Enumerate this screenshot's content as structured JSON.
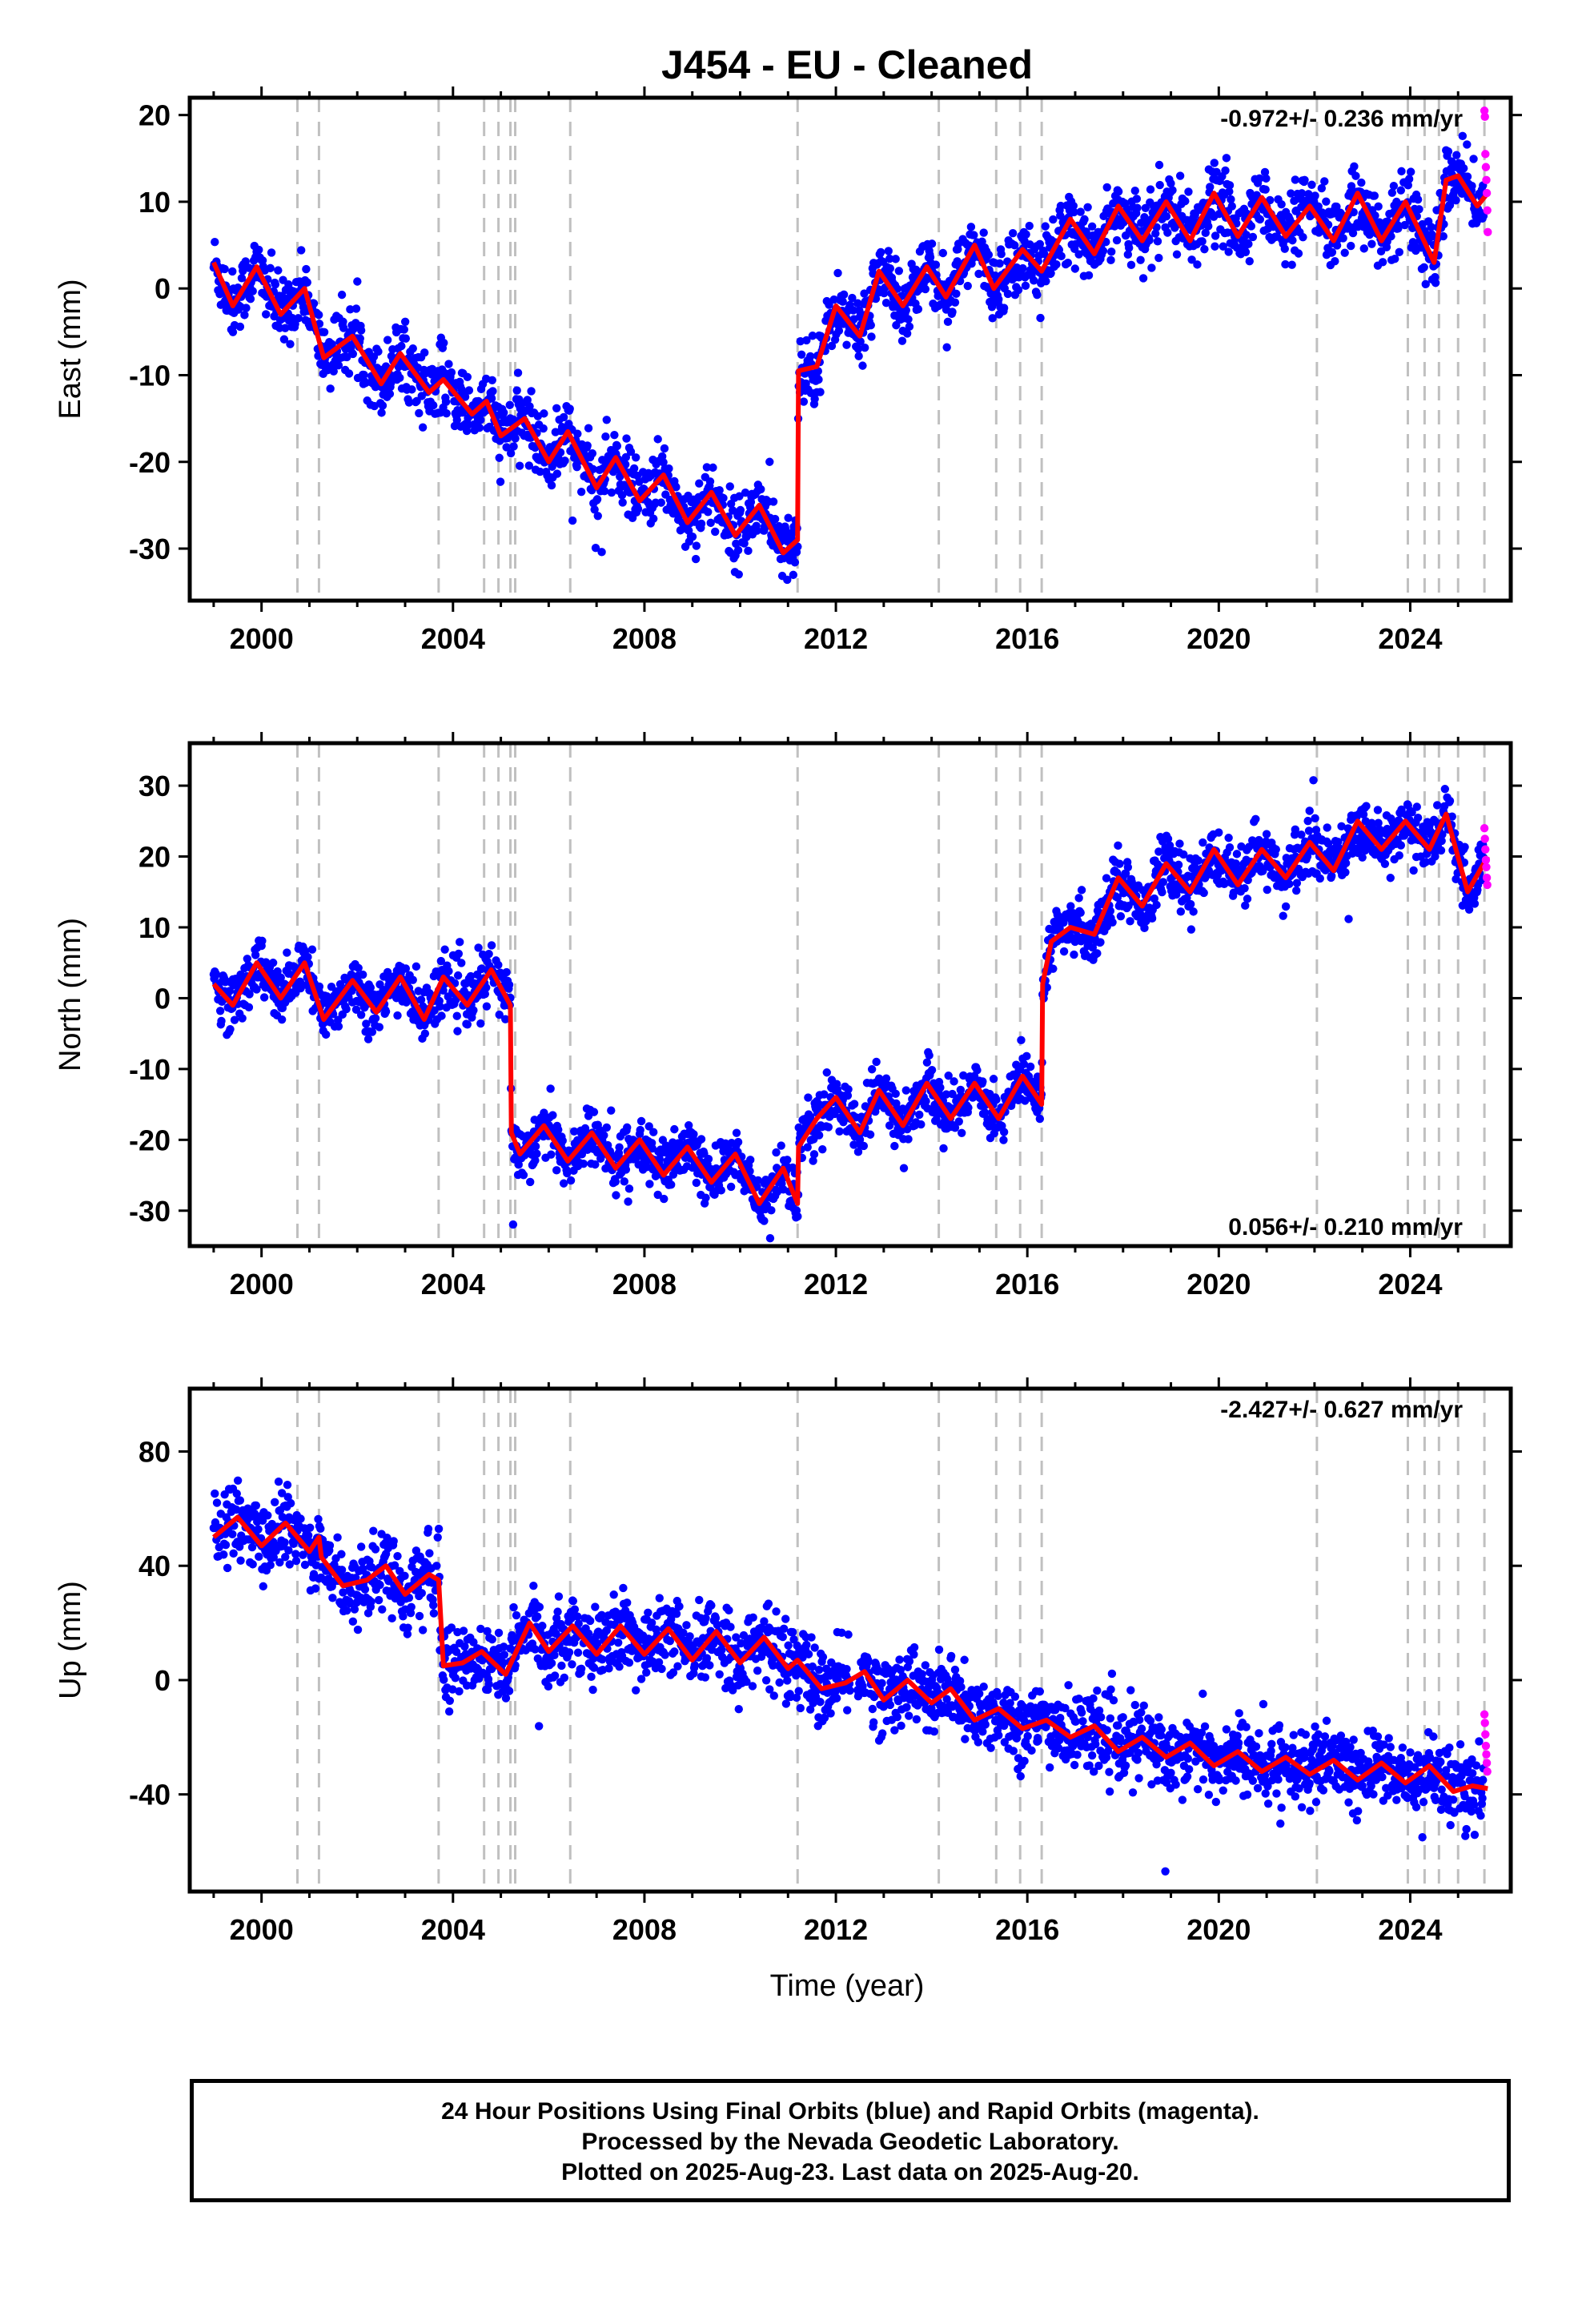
{
  "title": "J454  - EU - Cleaned",
  "footer": {
    "line1": "24 Hour Positions Using Final Orbits (blue) and Rapid Orbits (magenta).",
    "line2": "Processed by the Nevada Geodetic Laboratory.",
    "line3": "Plotted on 2025-Aug-23. Last data on 2025-Aug-20."
  },
  "colors": {
    "final": "#0000ff",
    "rapid": "#ff00ff",
    "model": "#ff0000",
    "event": "#c0c0c0"
  },
  "chart_data": [
    {
      "type": "scatter",
      "ylabel": "East (mm)",
      "xlabel": "",
      "xlim": [
        1998.5,
        2026.1
      ],
      "ylim": [
        -36,
        22
      ],
      "xticks": [
        2000,
        2004,
        2008,
        2012,
        2016,
        2020,
        2024
      ],
      "yticks": [
        -30,
        -20,
        -10,
        0,
        10,
        20
      ],
      "rate": "-0.972+/- 0.236 mm/yr",
      "rate_position": "top-right",
      "grid": false,
      "events": [
        2000.75,
        2001.2,
        2003.7,
        2004.65,
        2004.95,
        2005.2,
        2005.3,
        2006.45,
        2011.2,
        2014.15,
        2015.35,
        2015.85,
        2016.3,
        2022.05,
        2023.95,
        2024.3,
        2024.6,
        2025.0,
        2025.55
      ],
      "model": [
        [
          1999.0,
          3
        ],
        [
          1999.4,
          -2
        ],
        [
          1999.9,
          2.5
        ],
        [
          2000.4,
          -3
        ],
        [
          2000.9,
          0
        ],
        [
          2001.3,
          -8
        ],
        [
          2001.9,
          -5.5
        ],
        [
          2002.5,
          -11
        ],
        [
          2002.9,
          -7.5
        ],
        [
          2003.5,
          -12
        ],
        [
          2003.8,
          -10.5
        ],
        [
          2004.4,
          -14.5
        ],
        [
          2004.7,
          -13
        ],
        [
          2005.0,
          -17
        ],
        [
          2005.5,
          -15
        ],
        [
          2006.0,
          -20
        ],
        [
          2006.4,
          -16.5
        ],
        [
          2007.0,
          -23
        ],
        [
          2007.4,
          -19.5
        ],
        [
          2007.9,
          -24.5
        ],
        [
          2008.4,
          -21.5
        ],
        [
          2008.9,
          -27
        ],
        [
          2009.4,
          -23.5
        ],
        [
          2009.9,
          -28.5
        ],
        [
          2010.4,
          -25
        ],
        [
          2010.9,
          -30.5
        ],
        [
          2011.2,
          -29
        ],
        [
          2011.22,
          -9.5
        ],
        [
          2011.6,
          -9
        ],
        [
          2012.0,
          -2
        ],
        [
          2012.5,
          -5.5
        ],
        [
          2012.9,
          2
        ],
        [
          2013.4,
          -2
        ],
        [
          2013.9,
          2.5
        ],
        [
          2014.3,
          -1
        ],
        [
          2014.9,
          5
        ],
        [
          2015.3,
          0
        ],
        [
          2015.9,
          4.5
        ],
        [
          2016.3,
          2
        ],
        [
          2016.9,
          8
        ],
        [
          2017.4,
          4
        ],
        [
          2017.9,
          9.5
        ],
        [
          2018.4,
          5.5
        ],
        [
          2018.9,
          10
        ],
        [
          2019.4,
          5.5
        ],
        [
          2019.9,
          11
        ],
        [
          2020.4,
          6
        ],
        [
          2020.9,
          10.5
        ],
        [
          2021.4,
          6
        ],
        [
          2021.9,
          9.5
        ],
        [
          2022.4,
          5.5
        ],
        [
          2022.9,
          11
        ],
        [
          2023.4,
          5.5
        ],
        [
          2023.9,
          10
        ],
        [
          2024.5,
          3
        ],
        [
          2024.75,
          12.5
        ],
        [
          2025.0,
          13
        ],
        [
          2025.4,
          9.5
        ],
        [
          2025.62,
          11
        ]
      ],
      "final_scatter_mm": 1.9,
      "rapid_points": [
        [
          2025.55,
          20.5
        ],
        [
          2025.56,
          19.8
        ],
        [
          2025.57,
          15.5
        ],
        [
          2025.58,
          14.0
        ],
        [
          2025.59,
          12.5
        ],
        [
          2025.6,
          11.0
        ],
        [
          2025.61,
          9.0
        ],
        [
          2025.62,
          6.5
        ]
      ]
    },
    {
      "type": "scatter",
      "ylabel": "North (mm)",
      "xlabel": "",
      "xlim": [
        1998.5,
        2026.1
      ],
      "ylim": [
        -35,
        36
      ],
      "xticks": [
        2000,
        2004,
        2008,
        2012,
        2016,
        2020,
        2024
      ],
      "yticks": [
        -30,
        -20,
        -10,
        0,
        10,
        20,
        30
      ],
      "rate": "0.056+/- 0.210 mm/yr",
      "rate_position": "bottom-right",
      "grid": false,
      "events": [
        2000.75,
        2001.2,
        2003.7,
        2004.65,
        2004.95,
        2005.2,
        2005.3,
        2006.45,
        2011.2,
        2014.15,
        2015.35,
        2015.85,
        2016.3,
        2022.05,
        2023.95,
        2024.3,
        2024.6,
        2025.0,
        2025.55
      ],
      "model": [
        [
          1999.0,
          2
        ],
        [
          1999.4,
          -1
        ],
        [
          1999.9,
          5
        ],
        [
          2000.4,
          0
        ],
        [
          2000.9,
          5
        ],
        [
          2001.3,
          -3
        ],
        [
          2001.9,
          2.5
        ],
        [
          2002.4,
          -2
        ],
        [
          2002.9,
          3
        ],
        [
          2003.4,
          -3
        ],
        [
          2003.8,
          3
        ],
        [
          2004.3,
          -1
        ],
        [
          2004.8,
          4
        ],
        [
          2005.2,
          -1
        ],
        [
          2005.22,
          -19
        ],
        [
          2005.4,
          -22
        ],
        [
          2005.9,
          -18
        ],
        [
          2006.4,
          -23
        ],
        [
          2006.9,
          -19
        ],
        [
          2007.4,
          -24
        ],
        [
          2007.9,
          -20
        ],
        [
          2008.4,
          -25
        ],
        [
          2008.9,
          -21
        ],
        [
          2009.4,
          -26
        ],
        [
          2009.9,
          -22
        ],
        [
          2010.4,
          -29
        ],
        [
          2010.9,
          -24
        ],
        [
          2011.2,
          -29
        ],
        [
          2011.22,
          -21
        ],
        [
          2011.6,
          -17
        ],
        [
          2012.0,
          -14
        ],
        [
          2012.5,
          -19
        ],
        [
          2012.9,
          -13
        ],
        [
          2013.4,
          -18
        ],
        [
          2013.9,
          -12
        ],
        [
          2014.4,
          -17
        ],
        [
          2014.9,
          -12
        ],
        [
          2015.4,
          -17
        ],
        [
          2015.9,
          -11
        ],
        [
          2016.3,
          -15
        ],
        [
          2016.32,
          2
        ],
        [
          2016.5,
          8
        ],
        [
          2016.9,
          10
        ],
        [
          2017.4,
          9
        ],
        [
          2017.9,
          17
        ],
        [
          2018.4,
          13
        ],
        [
          2018.9,
          19
        ],
        [
          2019.4,
          15
        ],
        [
          2019.9,
          21
        ],
        [
          2020.4,
          16
        ],
        [
          2020.9,
          21
        ],
        [
          2021.4,
          17
        ],
        [
          2021.9,
          22
        ],
        [
          2022.4,
          18
        ],
        [
          2022.9,
          25
        ],
        [
          2023.4,
          21
        ],
        [
          2023.9,
          25
        ],
        [
          2024.4,
          21
        ],
        [
          2024.75,
          26
        ],
        [
          2025.2,
          15
        ],
        [
          2025.62,
          20
        ]
      ],
      "final_scatter_mm": 2.0,
      "rapid_points": [
        [
          2025.55,
          24.0
        ],
        [
          2025.56,
          22.5
        ],
        [
          2025.57,
          21.0
        ],
        [
          2025.58,
          19.5
        ],
        [
          2025.59,
          18.5
        ],
        [
          2025.6,
          17.0
        ],
        [
          2025.61,
          16.0
        ]
      ]
    },
    {
      "type": "scatter",
      "ylabel": "Up (mm)",
      "xlabel": "Time (year)",
      "xlim": [
        1998.5,
        2026.1
      ],
      "ylim": [
        -74,
        102
      ],
      "xticks": [
        2000,
        2004,
        2008,
        2012,
        2016,
        2020,
        2024
      ],
      "yticks": [
        -40,
        0,
        40,
        80
      ],
      "rate": "-2.427+/- 0.627 mm/yr",
      "rate_position": "top-right",
      "grid": false,
      "events": [
        2000.75,
        2001.2,
        2003.7,
        2004.65,
        2004.95,
        2005.2,
        2005.3,
        2006.45,
        2011.2,
        2014.15,
        2015.35,
        2015.85,
        2016.3,
        2022.05,
        2023.95,
        2024.3,
        2024.6,
        2025.0,
        2025.55
      ],
      "model": [
        [
          1999.0,
          50
        ],
        [
          1999.5,
          57
        ],
        [
          2000.0,
          47
        ],
        [
          2000.5,
          55
        ],
        [
          2001.0,
          45
        ],
        [
          2001.2,
          50
        ],
        [
          2001.25,
          43
        ],
        [
          2001.7,
          33
        ],
        [
          2002.2,
          35
        ],
        [
          2002.6,
          40
        ],
        [
          2003.0,
          30
        ],
        [
          2003.5,
          37
        ],
        [
          2003.7,
          35
        ],
        [
          2003.8,
          5
        ],
        [
          2004.2,
          6
        ],
        [
          2004.6,
          10
        ],
        [
          2005.1,
          2
        ],
        [
          2005.6,
          20
        ],
        [
          2006.0,
          10
        ],
        [
          2006.5,
          19
        ],
        [
          2007.0,
          9
        ],
        [
          2007.5,
          19
        ],
        [
          2008.0,
          9
        ],
        [
          2008.5,
          18
        ],
        [
          2009.0,
          7
        ],
        [
          2009.5,
          17
        ],
        [
          2010.0,
          6
        ],
        [
          2010.5,
          15
        ],
        [
          2011.0,
          4
        ],
        [
          2011.2,
          7
        ],
        [
          2011.7,
          -3
        ],
        [
          2012.2,
          -1
        ],
        [
          2012.6,
          3
        ],
        [
          2013.0,
          -7
        ],
        [
          2013.5,
          0
        ],
        [
          2014.0,
          -8
        ],
        [
          2014.4,
          -3
        ],
        [
          2014.9,
          -14
        ],
        [
          2015.4,
          -10
        ],
        [
          2015.9,
          -17
        ],
        [
          2016.4,
          -14
        ],
        [
          2016.9,
          -20
        ],
        [
          2017.4,
          -16
        ],
        [
          2017.9,
          -25
        ],
        [
          2018.4,
          -20
        ],
        [
          2018.9,
          -27
        ],
        [
          2019.4,
          -22
        ],
        [
          2019.9,
          -30
        ],
        [
          2020.4,
          -25
        ],
        [
          2020.9,
          -32
        ],
        [
          2021.4,
          -27
        ],
        [
          2021.9,
          -33
        ],
        [
          2022.4,
          -28
        ],
        [
          2022.9,
          -35
        ],
        [
          2023.4,
          -29
        ],
        [
          2023.9,
          -36
        ],
        [
          2024.4,
          -30
        ],
        [
          2024.9,
          -39
        ],
        [
          2025.3,
          -37
        ],
        [
          2025.62,
          -38
        ]
      ],
      "final_scatter_mm": 6.5,
      "rapid_points": [
        [
          2025.55,
          -12.0
        ],
        [
          2025.56,
          -15.0
        ],
        [
          2025.57,
          -19.0
        ],
        [
          2025.58,
          -23.0
        ],
        [
          2025.59,
          -26.0
        ],
        [
          2025.6,
          -29.0
        ],
        [
          2025.61,
          -32.0
        ]
      ]
    }
  ]
}
